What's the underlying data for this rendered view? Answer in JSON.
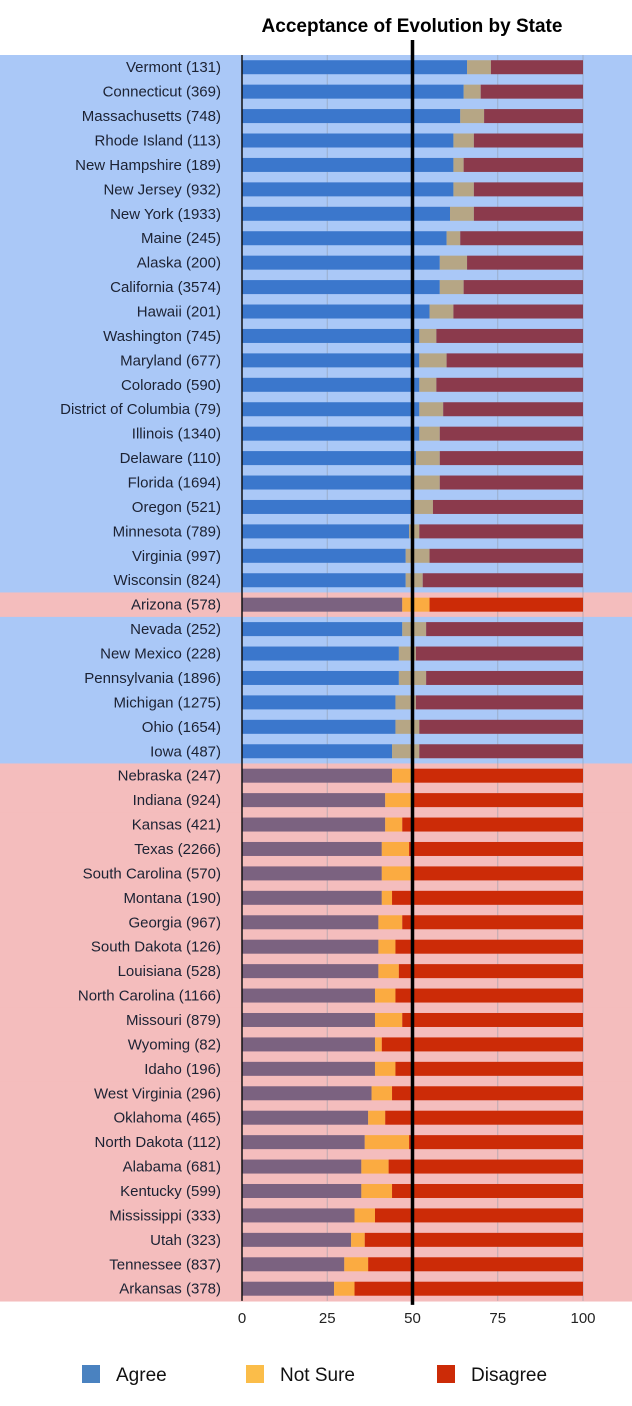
{
  "chart_data": {
    "type": "bar",
    "stacked": true,
    "orientation": "horizontal",
    "title": "Acceptance of Evolution by State",
    "xlabel": "",
    "ylabel": "",
    "xlim": [
      0,
      100
    ],
    "xticks": [
      "0",
      "25",
      "50",
      "75",
      "100"
    ],
    "grid": true,
    "legend": {
      "placement": "bottom",
      "entries": [
        {
          "name": "Agree",
          "color": "#4a82c0"
        },
        {
          "name": "Not Sure",
          "color": "#fbbd49"
        },
        {
          "name": "Disagree",
          "color": "#cc2b07"
        }
      ]
    },
    "colors": {
      "majority_agree_band": "#aac8f7",
      "majority_disagree_band": "#f4bdbd",
      "agree_on_blue": "#3b77cc",
      "notsure_on_blue": "#b6a685",
      "disagree_on_blue": "#8b3a4c",
      "agree_on_red": "#7b6280",
      "notsure_on_red": "#fbab41",
      "disagree_on_red": "#cc2b07",
      "midline": "#000000"
    },
    "categories": [
      "Vermont (131)",
      "Connecticut (369)",
      "Massachusetts (748)",
      "Rhode Island (113)",
      "New Hampshire (189)",
      "New Jersey (932)",
      "New York (1933)",
      "Maine (245)",
      "Alaska (200)",
      "California (3574)",
      "Hawaii (201)",
      "Washington (745)",
      "Maryland (677)",
      "Colorado (590)",
      "District of Columbia (79)",
      "Illinois (1340)",
      "Delaware (110)",
      "Florida (1694)",
      "Oregon (521)",
      "Minnesota (789)",
      "Virginia (997)",
      "Wisconsin (824)",
      "Arizona (578)",
      "Nevada (252)",
      "New Mexico (228)",
      "Pennsylvania (1896)",
      "Michigan (1275)",
      "Ohio (1654)",
      "Iowa (487)",
      "Nebraska (247)",
      "Indiana (924)",
      "Kansas (421)",
      "Texas (2266)",
      "South Carolina (570)",
      "Montana (190)",
      "Georgia (967)",
      "South Dakota (126)",
      "Louisiana (528)",
      "North Carolina (1166)",
      "Missouri (879)",
      "Wyoming (82)",
      "Idaho (196)",
      "West Virginia (296)",
      "Oklahoma (465)",
      "North Dakota (112)",
      "Alabama (681)",
      "Kentucky (599)",
      "Mississippi (333)",
      "Utah (323)",
      "Tennessee (837)",
      "Arkansas (378)"
    ],
    "majority": [
      "agree",
      "agree",
      "agree",
      "agree",
      "agree",
      "agree",
      "agree",
      "agree",
      "agree",
      "agree",
      "agree",
      "agree",
      "agree",
      "agree",
      "agree",
      "agree",
      "agree",
      "agree",
      "agree",
      "agree",
      "agree",
      "agree",
      "disagree",
      "agree",
      "agree",
      "agree",
      "agree",
      "agree",
      "agree",
      "disagree",
      "disagree",
      "disagree",
      "disagree",
      "disagree",
      "disagree",
      "disagree",
      "disagree",
      "disagree",
      "disagree",
      "disagree",
      "disagree",
      "disagree",
      "disagree",
      "disagree",
      "disagree",
      "disagree",
      "disagree",
      "disagree",
      "disagree",
      "disagree",
      "disagree"
    ],
    "series": [
      {
        "name": "Agree",
        "values": [
          66,
          65,
          64,
          62,
          62,
          62,
          61,
          60,
          58,
          58,
          55,
          52,
          52,
          52,
          52,
          52,
          51,
          50,
          50,
          49,
          48,
          48,
          47,
          47,
          46,
          46,
          45,
          45,
          44,
          44,
          42,
          42,
          41,
          41,
          41,
          40,
          40,
          40,
          39,
          39,
          39,
          39,
          38,
          37,
          36,
          35,
          35,
          33,
          32,
          30,
          27
        ]
      },
      {
        "name": "Not Sure",
        "values": [
          7,
          5,
          7,
          6,
          3,
          6,
          7,
          4,
          8,
          7,
          7,
          5,
          8,
          5,
          7,
          6,
          7,
          8,
          6,
          3,
          7,
          5,
          8,
          7,
          5,
          8,
          6,
          7,
          8,
          6,
          8,
          5,
          8,
          9,
          3,
          7,
          5,
          6,
          6,
          8,
          2,
          6,
          6,
          5,
          13,
          8,
          9,
          6,
          4,
          7,
          6
        ]
      },
      {
        "name": "Disagree",
        "values": [
          27,
          30,
          29,
          32,
          35,
          32,
          32,
          36,
          34,
          35,
          38,
          43,
          40,
          43,
          41,
          42,
          42,
          42,
          44,
          48,
          45,
          47,
          45,
          46,
          49,
          46,
          49,
          48,
          48,
          50,
          50,
          53,
          51,
          50,
          56,
          53,
          55,
          54,
          55,
          53,
          59,
          55,
          56,
          58,
          51,
          57,
          56,
          61,
          64,
          63,
          67
        ]
      }
    ]
  }
}
